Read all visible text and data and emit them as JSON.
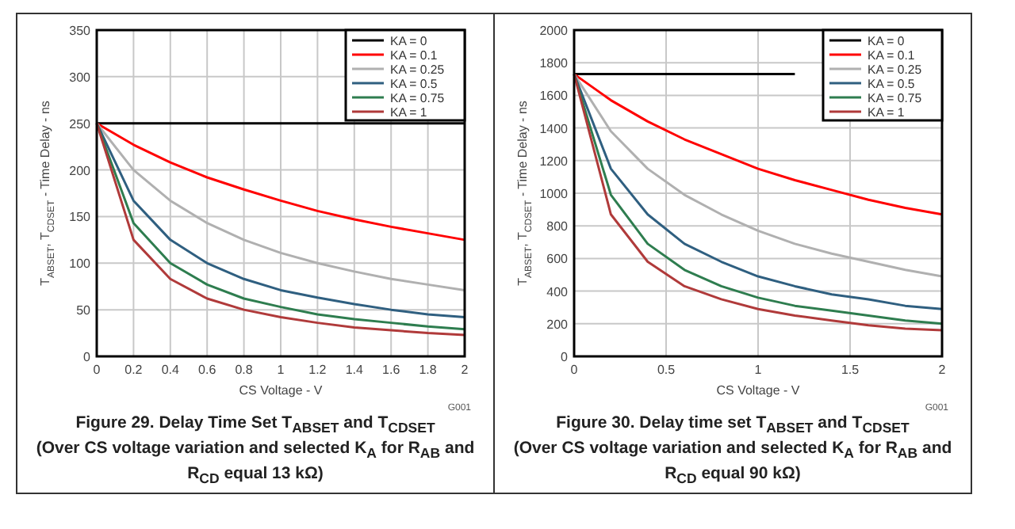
{
  "chart_data": [
    {
      "type": "line",
      "title": "Figure 29. Delay Time Set T$_{ABSET}$ and T$_{CDSET}$",
      "subtitle": "(Over CS voltage variation and selected K$_{A}$ for R$_{AB}$ and R$_{CD}$ equal 13 kΩ)",
      "xlabel": "CS Voltage - V",
      "ylabel": "T$_{ABSET}$, T$_{CDSET}$ - Time Delay - ns",
      "annotations": [
        "G001"
      ],
      "x": [
        0,
        0.2,
        0.4,
        0.6,
        0.8,
        1,
        1.2,
        1.4,
        1.6,
        1.8,
        2
      ],
      "series": [
        {
          "name": "KA = 0",
          "color": "#000000",
          "values": [
            250,
            250,
            250,
            250,
            250,
            250,
            250,
            250,
            250,
            250,
            250
          ]
        },
        {
          "name": "KA = 0.1",
          "color": "#ff0000",
          "values": [
            250,
            227,
            208,
            192,
            179,
            167,
            156,
            147,
            139,
            132,
            125
          ]
        },
        {
          "name": "KA = 0.25",
          "color": "#b0b0b0",
          "values": [
            250,
            200,
            167,
            143,
            125,
            111,
            100,
            91,
            83,
            77,
            71
          ]
        },
        {
          "name": "KA = 0.5",
          "color": "#2f5f80",
          "values": [
            250,
            167,
            125,
            100,
            83,
            71,
            63,
            56,
            50,
            45,
            42
          ]
        },
        {
          "name": "KA = 0.75",
          "color": "#2e7d4f",
          "values": [
            250,
            143,
            100,
            77,
            62,
            53,
            45,
            40,
            36,
            32,
            29
          ]
        },
        {
          "name": "KA = 1",
          "color": "#b03a3a",
          "values": [
            250,
            125,
            83,
            62,
            50,
            42,
            36,
            31,
            28,
            25,
            23
          ]
        }
      ],
      "xlim": [
        0,
        2
      ],
      "xticks": [
        0,
        0.2,
        0.4,
        0.6,
        0.8,
        1,
        1.2,
        1.4,
        1.6,
        1.8,
        2
      ],
      "ylim": [
        0,
        350
      ],
      "yticks": [
        0,
        50,
        100,
        150,
        200,
        250,
        300,
        350
      ],
      "grid": true,
      "legend": "top right"
    },
    {
      "type": "line",
      "title": "Figure 30. Delay time set T$_{ABSET}$ and T$_{CDSET}$",
      "subtitle": "(Over CS voltage variation and selected K$_{A}$ for R$_{AB}$ and R$_{CD}$ equal 90 kΩ)",
      "xlabel": "CS Voltage - V",
      "ylabel": "T$_{ABSET}$, T$_{CDSET}$ - Time Delay - ns",
      "annotations": [
        "G001"
      ],
      "x": [
        0,
        0.2,
        0.4,
        0.6,
        0.8,
        1,
        1.2,
        1.4,
        1.6,
        1.8,
        2
      ],
      "series": [
        {
          "name": "KA = 0",
          "color": "#000000",
          "values": [
            1730,
            1730,
            1730,
            1730,
            1730,
            1730,
            1730,
            null,
            null,
            null,
            null
          ]
        },
        {
          "name": "KA = 0.1",
          "color": "#ff0000",
          "values": [
            1730,
            1570,
            1440,
            1330,
            1240,
            1150,
            1080,
            1020,
            960,
            910,
            870
          ]
        },
        {
          "name": "KA = 0.25",
          "color": "#b0b0b0",
          "values": [
            1730,
            1380,
            1150,
            990,
            870,
            770,
            690,
            630,
            580,
            530,
            490
          ]
        },
        {
          "name": "KA = 0.5",
          "color": "#2f5f80",
          "values": [
            1730,
            1150,
            870,
            690,
            580,
            490,
            430,
            380,
            350,
            310,
            290
          ]
        },
        {
          "name": "KA = 0.75",
          "color": "#2e7d4f",
          "values": [
            1730,
            990,
            690,
            530,
            430,
            360,
            310,
            280,
            250,
            220,
            200
          ]
        },
        {
          "name": "KA = 1",
          "color": "#b03a3a",
          "values": [
            1730,
            870,
            580,
            430,
            350,
            290,
            250,
            220,
            190,
            170,
            160
          ]
        }
      ],
      "xlim": [
        0,
        2
      ],
      "xticks": [
        0,
        0.5,
        1,
        1.5,
        2
      ],
      "ylim": [
        0,
        2000
      ],
      "yticks": [
        0,
        200,
        400,
        600,
        800,
        1000,
        1200,
        1400,
        1600,
        1800,
        2000
      ],
      "grid": true,
      "legend": "top right"
    }
  ]
}
